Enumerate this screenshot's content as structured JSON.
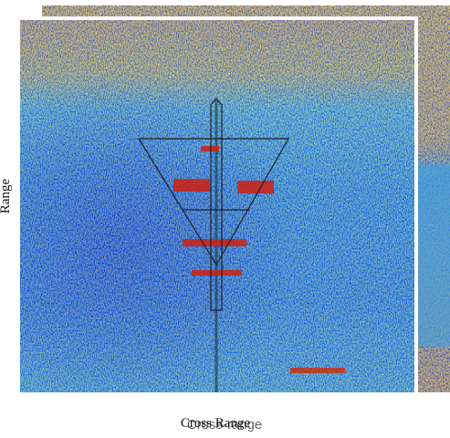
{
  "front_image": {
    "y_label": "Range",
    "x_label": "Cross Range"
  },
  "back_image": {
    "x_label": "Cross-range"
  }
}
